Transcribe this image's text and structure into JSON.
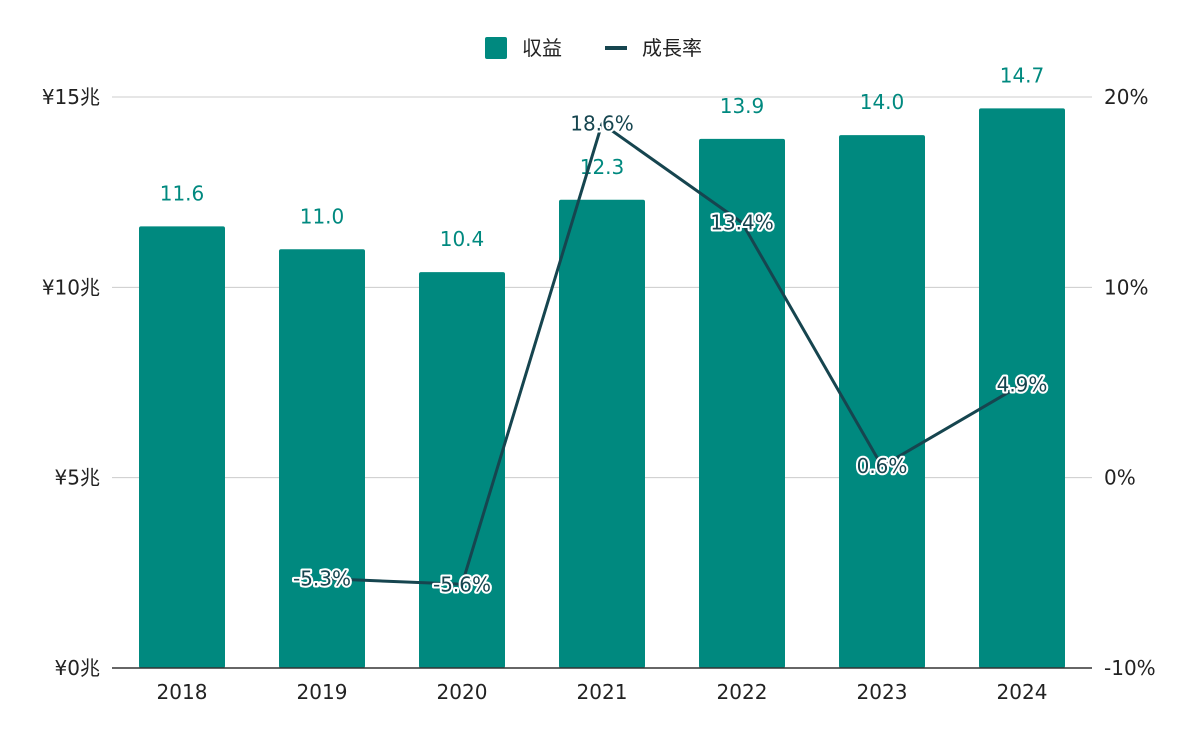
{
  "chart_data": {
    "type": "bar",
    "categories": [
      "2018",
      "2019",
      "2020",
      "2021",
      "2022",
      "2023",
      "2024"
    ],
    "series": [
      {
        "name": "収益",
        "type": "bar",
        "axis": "left",
        "values": [
          11.6,
          11.0,
          10.4,
          12.3,
          13.9,
          14.0,
          14.7
        ],
        "labels": [
          "11.6",
          "11.0",
          "10.4",
          "12.3",
          "13.9",
          "14.0",
          "14.7"
        ],
        "color": "#00897f"
      },
      {
        "name": "成長率",
        "type": "line",
        "axis": "right",
        "values": [
          null,
          -5.3,
          -5.6,
          18.6,
          13.4,
          0.6,
          4.9
        ],
        "labels": [
          "",
          "-5.3%",
          "-5.6%",
          "18.6%",
          "13.4%",
          "0.6%",
          "4.9%"
        ],
        "color": "#16454f"
      }
    ],
    "y_left": {
      "ylim": [
        0,
        15
      ],
      "ticks": [
        0,
        5,
        10,
        15
      ],
      "tick_labels": [
        "¥0兆",
        "¥5兆",
        "¥10兆",
        "¥15兆"
      ]
    },
    "y_right": {
      "ylim": [
        -10,
        20
      ],
      "ticks": [
        -10,
        0,
        10,
        20
      ],
      "tick_labels": [
        "-10%",
        "0%",
        "10%",
        "20%"
      ]
    },
    "legend": {
      "position": "top-center",
      "items": [
        "収益",
        "成長率"
      ]
    },
    "grid": true,
    "title": "",
    "xlabel": "",
    "ylabel": ""
  }
}
